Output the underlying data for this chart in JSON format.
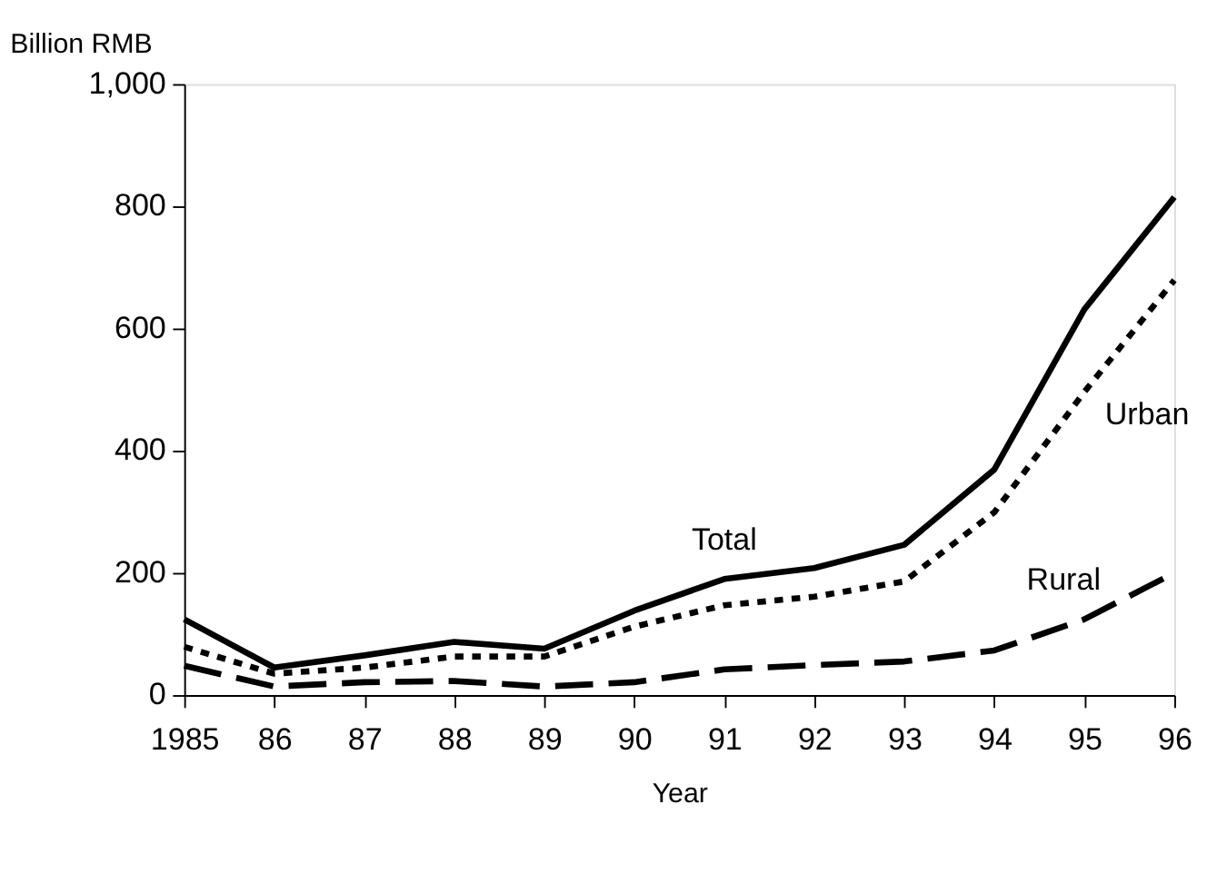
{
  "chart_data": {
    "type": "line",
    "ylabel": "Billion RMB",
    "xlabel": "Year",
    "x": [
      1985,
      1986,
      1987,
      1988,
      1989,
      1990,
      1991,
      1992,
      1993,
      1994,
      1995,
      1996
    ],
    "series": [
      {
        "name": "Total",
        "color": "#000000",
        "line_style": "solid",
        "values": [
          124,
          45,
          65,
          87,
          76,
          138,
          190,
          208,
          246,
          369,
          631,
          815
        ]
      },
      {
        "name": "Urban",
        "color": "#000000",
        "line_style": "dotted",
        "values": [
          79,
          35,
          45,
          63,
          63,
          112,
          147,
          161,
          186,
          299,
          496,
          679
        ]
      },
      {
        "name": "Rural",
        "color": "#000000",
        "line_style": "dashed",
        "values": [
          48,
          14,
          21,
          23,
          14,
          21,
          42,
          49,
          55,
          73,
          124,
          200
        ]
      }
    ],
    "xlim": [
      1985,
      1996
    ],
    "xticks": [
      {
        "value": 1985,
        "label": "1985"
      },
      {
        "value": 1986,
        "label": "86"
      },
      {
        "value": 1987,
        "label": "87"
      },
      {
        "value": 1988,
        "label": "88"
      },
      {
        "value": 1989,
        "label": "89"
      },
      {
        "value": 1990,
        "label": "90"
      },
      {
        "value": 1991,
        "label": "91"
      },
      {
        "value": 1992,
        "label": "92"
      },
      {
        "value": 1993,
        "label": "93"
      },
      {
        "value": 1994,
        "label": "94"
      },
      {
        "value": 1995,
        "label": "95"
      },
      {
        "value": 1996,
        "label": "96"
      }
    ],
    "ylim": [
      0,
      1000
    ],
    "yticks": [
      0,
      200,
      400,
      600,
      800,
      {
        "value": 1000,
        "label": "1,000"
      }
    ],
    "grid": false,
    "marker": "none"
  }
}
